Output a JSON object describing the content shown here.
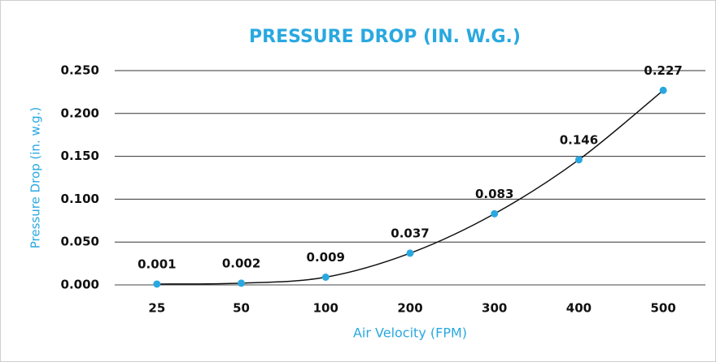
{
  "chart_data": {
    "type": "line",
    "title": "PRESSURE DROP (IN. W.G.)",
    "x_label": "Air Velocity (FPM)",
    "y_label": "Pressure Drop (in. w.g.)",
    "categories": [
      "25",
      "50",
      "100",
      "200",
      "300",
      "400",
      "500"
    ],
    "values": [
      0.001,
      0.002,
      0.009,
      0.037,
      0.083,
      0.146,
      0.227
    ],
    "color": "#29a8e0",
    "ylim": [
      0,
      0.25
    ],
    "yticks": [
      {
        "value": 0,
        "label": "0.000"
      },
      {
        "value": 0.05,
        "label": "0.050"
      },
      {
        "value": 0.1,
        "label": "0.100"
      },
      {
        "value": 0.15,
        "label": "0.150"
      },
      {
        "value": 0.2,
        "label": "0.200"
      },
      {
        "value": 0.25,
        "label": "0.250"
      }
    ],
    "grid": true
  }
}
